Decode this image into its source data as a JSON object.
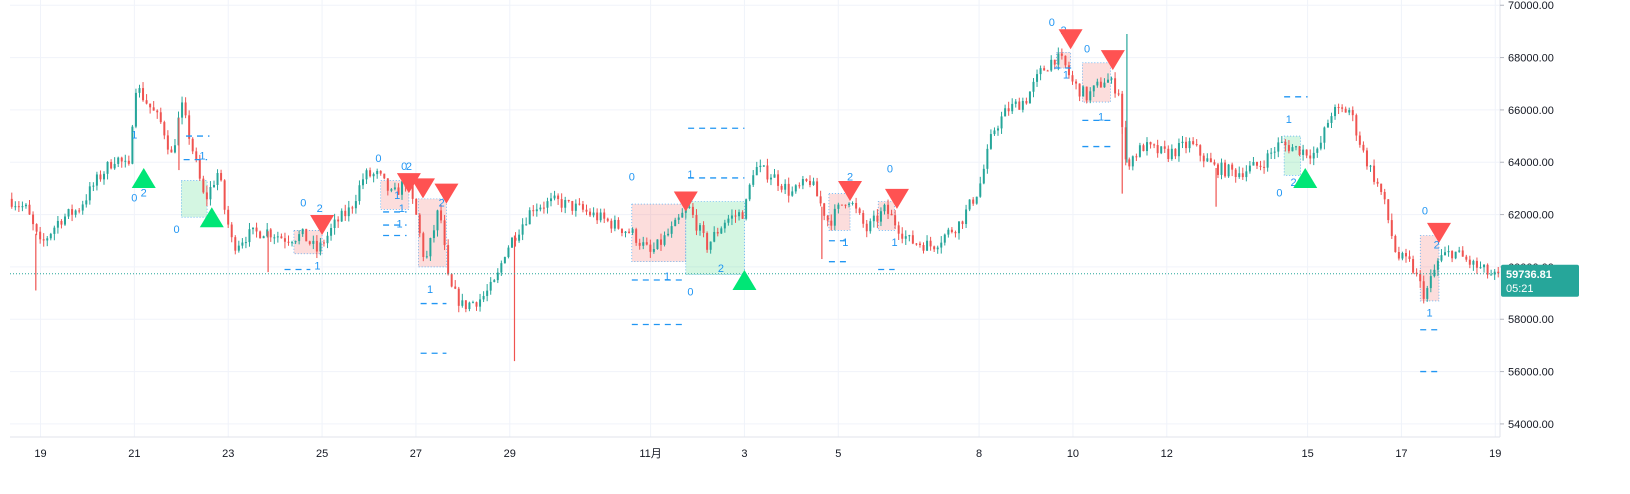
{
  "chart_data": {
    "type": "candlestick",
    "x_ticks": [
      "19",
      "21",
      "23",
      "25",
      "27",
      "29",
      "11月",
      "3",
      "5",
      "8",
      "10",
      "12",
      "15",
      "17",
      "19"
    ],
    "y_ticks": [
      "70000.00",
      "68000.00",
      "66000.00",
      "64000.00",
      "62000.00",
      "60000.00",
      "58000.00",
      "56000.00",
      "54000.00"
    ],
    "ylim": [
      53500,
      70200
    ],
    "price": {
      "value": "59736.81",
      "countdown": "05:21",
      "level": 59736.81
    },
    "x_days": [
      19,
      21,
      23,
      25,
      27,
      29,
      32,
      34,
      36,
      39,
      41,
      43,
      46,
      48,
      50
    ],
    "days_range": [
      18.35,
      50.1
    ],
    "path": [
      [
        18.35,
        62600
      ],
      [
        18.7,
        62200
      ],
      [
        19.0,
        60800
      ],
      [
        19.4,
        61800
      ],
      [
        19.8,
        62200
      ],
      [
        20.2,
        63300
      ],
      [
        20.6,
        64200
      ],
      [
        20.9,
        63700
      ],
      [
        21.0,
        67000
      ],
      [
        21.3,
        66200
      ],
      [
        21.6,
        65400
      ],
      [
        21.8,
        64200
      ],
      [
        22.0,
        66200
      ],
      [
        22.2,
        64800
      ],
      [
        22.5,
        62500
      ],
      [
        22.8,
        63700
      ],
      [
        22.9,
        62400
      ],
      [
        23.1,
        60800
      ],
      [
        23.4,
        61200
      ],
      [
        23.8,
        61400
      ],
      [
        24.2,
        61100
      ],
      [
        24.6,
        61200
      ],
      [
        24.9,
        60600
      ],
      [
        25.3,
        61700
      ],
      [
        25.6,
        62200
      ],
      [
        25.9,
        63500
      ],
      [
        26.2,
        63500
      ],
      [
        26.5,
        62700
      ],
      [
        26.8,
        63300
      ],
      [
        27.0,
        62000
      ],
      [
        27.2,
        60100
      ],
      [
        27.5,
        62300
      ],
      [
        27.7,
        59300
      ],
      [
        28.0,
        58500
      ],
      [
        28.4,
        58800
      ],
      [
        28.7,
        59400
      ],
      [
        28.9,
        60600
      ],
      [
        29.1,
        61200
      ],
      [
        29.5,
        62300
      ],
      [
        30.0,
        62500
      ],
      [
        30.5,
        62200
      ],
      [
        31.0,
        61800
      ],
      [
        31.6,
        61300
      ],
      [
        32.0,
        60500
      ],
      [
        32.5,
        61500
      ],
      [
        32.8,
        62300
      ],
      [
        33.2,
        60800
      ],
      [
        33.6,
        61800
      ],
      [
        34.0,
        62100
      ],
      [
        34.2,
        63800
      ],
      [
        34.6,
        63500
      ],
      [
        35.0,
        62800
      ],
      [
        35.4,
        63300
      ],
      [
        35.8,
        61700
      ],
      [
        36.2,
        62700
      ],
      [
        36.6,
        61400
      ],
      [
        37.0,
        62200
      ],
      [
        37.5,
        61000
      ],
      [
        38.0,
        60800
      ],
      [
        38.6,
        61700
      ],
      [
        39.0,
        63000
      ],
      [
        39.3,
        65200
      ],
      [
        39.6,
        66000
      ],
      [
        40.0,
        66400
      ],
      [
        40.3,
        67400
      ],
      [
        40.6,
        68000
      ],
      [
        40.8,
        67800
      ],
      [
        41.0,
        67000
      ],
      [
        41.3,
        66500
      ],
      [
        41.7,
        67200
      ],
      [
        42.0,
        66700
      ],
      [
        42.1,
        63900
      ],
      [
        42.5,
        64600
      ],
      [
        43.0,
        64300
      ],
      [
        43.5,
        64700
      ],
      [
        44.0,
        63800
      ],
      [
        44.5,
        63600
      ],
      [
        45.0,
        63900
      ],
      [
        45.4,
        64700
      ],
      [
        45.8,
        64500
      ],
      [
        46.2,
        64300
      ],
      [
        46.5,
        65900
      ],
      [
        46.9,
        66000
      ],
      [
        47.2,
        64300
      ],
      [
        47.6,
        62700
      ],
      [
        47.9,
        60400
      ],
      [
        48.2,
        60100
      ],
      [
        48.5,
        58900
      ],
      [
        48.8,
        60300
      ],
      [
        49.1,
        60600
      ],
      [
        49.5,
        60100
      ],
      [
        50.0,
        59600
      ]
    ],
    "spikes": [
      [
        18.9,
        59100
      ],
      [
        21.95,
        63700
      ],
      [
        23.85,
        59800
      ],
      [
        29.1,
        56400
      ],
      [
        35.65,
        60300
      ],
      [
        42.05,
        62800
      ],
      [
        42.15,
        68900
      ],
      [
        44.05,
        62300
      ]
    ],
    "boxes": [
      {
        "x1": 22.0,
        "x2": 22.55,
        "top": 63300,
        "bottom": 61900,
        "color": "green"
      },
      {
        "x1": 24.4,
        "x2": 25.0,
        "top": 61400,
        "bottom": 60500,
        "color": "red"
      },
      {
        "x1": 26.25,
        "x2": 26.85,
        "top": 63300,
        "bottom": 62200,
        "color": "red"
      },
      {
        "x1": 27.05,
        "x2": 27.65,
        "top": 62600,
        "bottom": 60000,
        "color": "red"
      },
      {
        "x1": 31.6,
        "x2": 32.75,
        "top": 62400,
        "bottom": 60200,
        "color": "red"
      },
      {
        "x1": 32.75,
        "x2": 34.0,
        "top": 62500,
        "bottom": 59700,
        "color": "green"
      },
      {
        "x1": 35.8,
        "x2": 36.25,
        "top": 62800,
        "bottom": 61400,
        "color": "red"
      },
      {
        "x1": 36.85,
        "x2": 37.2,
        "top": 62500,
        "bottom": 61400,
        "color": "red"
      },
      {
        "x1": 40.65,
        "x2": 40.95,
        "top": 68200,
        "bottom": 67600,
        "color": "red"
      },
      {
        "x1": 41.2,
        "x2": 41.8,
        "top": 67800,
        "bottom": 66300,
        "color": "red"
      },
      {
        "x1": 45.5,
        "x2": 45.85,
        "top": 65000,
        "bottom": 63500,
        "color": "green"
      },
      {
        "x1": 48.4,
        "x2": 48.8,
        "top": 61200,
        "bottom": 58700,
        "color": "red"
      }
    ],
    "dashes": [
      [
        22.1,
        22.6,
        65000
      ],
      [
        22.05,
        22.55,
        64100
      ],
      [
        24.2,
        24.75,
        59900
      ],
      [
        26.3,
        26.8,
        62100
      ],
      [
        26.3,
        26.8,
        61600
      ],
      [
        26.3,
        26.8,
        61200
      ],
      [
        27.1,
        27.65,
        58600
      ],
      [
        27.1,
        27.65,
        56700
      ],
      [
        31.6,
        32.75,
        57800
      ],
      [
        31.6,
        32.75,
        59500
      ],
      [
        32.8,
        34.0,
        65300
      ],
      [
        32.8,
        34.0,
        63400
      ],
      [
        35.8,
        36.2,
        61000
      ],
      [
        35.8,
        36.2,
        60200
      ],
      [
        36.85,
        37.2,
        59900
      ],
      [
        40.6,
        41.0,
        67600
      ],
      [
        41.2,
        41.8,
        65600
      ],
      [
        41.2,
        41.8,
        64600
      ],
      [
        45.5,
        46.0,
        66500
      ],
      [
        48.4,
        48.8,
        57600
      ],
      [
        48.4,
        48.8,
        56000
      ]
    ],
    "markers": [
      {
        "type": "up",
        "x": 21.2,
        "y": 63400
      },
      {
        "type": "up",
        "x": 22.65,
        "y": 61900
      },
      {
        "type": "down",
        "x": 25.0,
        "y": 61600
      },
      {
        "type": "down",
        "x": 26.85,
        "y": 63200
      },
      {
        "type": "down",
        "x": 27.15,
        "y": 63000
      },
      {
        "type": "down",
        "x": 27.65,
        "y": 62800
      },
      {
        "type": "down",
        "x": 32.75,
        "y": 62500
      },
      {
        "type": "up",
        "x": 34.0,
        "y": 59500
      },
      {
        "type": "down",
        "x": 36.25,
        "y": 62900
      },
      {
        "type": "down",
        "x": 37.25,
        "y": 62600
      },
      {
        "type": "down",
        "x": 40.95,
        "y": 68700
      },
      {
        "type": "down",
        "x": 41.85,
        "y": 67900
      },
      {
        "type": "up",
        "x": 45.95,
        "y": 63400
      },
      {
        "type": "down",
        "x": 48.8,
        "y": 61300
      }
    ],
    "annotations": [
      {
        "text": "1",
        "x": 21.0,
        "y": 64900
      },
      {
        "text": "2",
        "x": 21.2,
        "y": 62700
      },
      {
        "text": "0",
        "x": 21.0,
        "y": 62500
      },
      {
        "text": "1",
        "x": 22.45,
        "y": 64100
      },
      {
        "text": "0",
        "x": 21.9,
        "y": 61300
      },
      {
        "text": "0",
        "x": 24.6,
        "y": 62300
      },
      {
        "text": "2",
        "x": 24.95,
        "y": 62100
      },
      {
        "text": "1",
        "x": 24.9,
        "y": 59900
      },
      {
        "text": "0",
        "x": 26.2,
        "y": 64000
      },
      {
        "text": "0",
        "x": 26.75,
        "y": 63700
      },
      {
        "text": "2",
        "x": 26.85,
        "y": 63700
      },
      {
        "text": "1",
        "x": 26.6,
        "y": 62600
      },
      {
        "text": "1",
        "x": 26.7,
        "y": 62100
      },
      {
        "text": "1",
        "x": 26.65,
        "y": 61500
      },
      {
        "text": "2",
        "x": 27.55,
        "y": 62300
      },
      {
        "text": "1",
        "x": 27.3,
        "y": 59000
      },
      {
        "text": "0",
        "x": 31.6,
        "y": 63300
      },
      {
        "text": "1",
        "x": 32.85,
        "y": 63400
      },
      {
        "text": "1",
        "x": 32.35,
        "y": 59500
      },
      {
        "text": "2",
        "x": 33.5,
        "y": 59800
      },
      {
        "text": "0",
        "x": 32.85,
        "y": 58900
      },
      {
        "text": "2",
        "x": 36.25,
        "y": 63300
      },
      {
        "text": "1",
        "x": 36.15,
        "y": 60800
      },
      {
        "text": "0",
        "x": 37.1,
        "y": 63600
      },
      {
        "text": "1",
        "x": 37.2,
        "y": 60800
      },
      {
        "text": "0",
        "x": 40.55,
        "y": 69200
      },
      {
        "text": "2",
        "x": 40.8,
        "y": 68900
      },
      {
        "text": "1",
        "x": 40.85,
        "y": 67200
      },
      {
        "text": "0",
        "x": 41.3,
        "y": 68200
      },
      {
        "text": "1",
        "x": 41.6,
        "y": 65600
      },
      {
        "text": "1",
        "x": 45.6,
        "y": 65500
      },
      {
        "text": "0",
        "x": 45.4,
        "y": 62700
      },
      {
        "text": "2",
        "x": 45.7,
        "y": 63100
      },
      {
        "text": "0",
        "x": 48.5,
        "y": 62000
      },
      {
        "text": "2",
        "x": 48.75,
        "y": 60700
      },
      {
        "text": "1",
        "x": 48.6,
        "y": 58100
      }
    ],
    "colors": {
      "up": "#26a69a",
      "down": "#ef5350",
      "up_marker": "#00e676",
      "down_marker": "#ff5252",
      "pattern": "#2196f3",
      "price_label_bg": "#26a69a",
      "grid": "#f0f3fa"
    },
    "grid": true
  }
}
